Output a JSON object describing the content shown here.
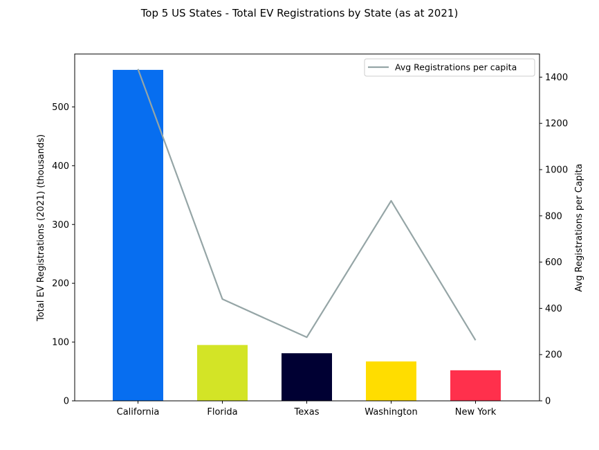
{
  "chart_data": {
    "type": "bar",
    "title": "Top 5 US States - Total EV Registrations by State (as at 2021)",
    "categories": [
      "California",
      "Florida",
      "Texas",
      "Washington",
      "New York"
    ],
    "series": [
      {
        "values": [
          563,
          95,
          81,
          67,
          52
        ],
        "colors": [
          "#076ef0",
          "#d3e426",
          "#000033",
          "#ffdd00",
          "#ff304c"
        ]
      },
      {
        "name": "Avg Registrations per capita",
        "type": "line",
        "axis": "right",
        "color": "#95a5a6",
        "values": [
          1435,
          440,
          275,
          865,
          262
        ]
      }
    ],
    "ylabel": "Total EV Registrations (2021) (thousands)",
    "y2label": "Avg Registrations per Capita",
    "ylim": [
      0,
      590
    ],
    "y2lim": [
      0,
      1500
    ],
    "yticks": [
      "0",
      "100",
      "200",
      "300",
      "400",
      "500"
    ],
    "y2ticks": [
      "0",
      "200",
      "400",
      "600",
      "800",
      "1000",
      "1200",
      "1400"
    ],
    "legend_position": "top-right",
    "grid": false
  }
}
